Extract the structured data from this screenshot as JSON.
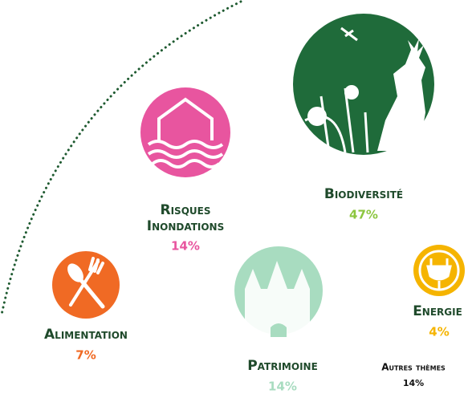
{
  "items": [
    {
      "label": "Biodiversité",
      "value": "47%"
    },
    {
      "label": "Risques Inondations",
      "lines": [
        "Risques",
        "Inondations"
      ],
      "value": "14%"
    },
    {
      "label": "Alimentation",
      "value": "7%"
    },
    {
      "label": "Patrimoine",
      "value": "14%"
    },
    {
      "label": "Energie",
      "value": "4%"
    },
    {
      "label": "Autres thèmes",
      "value": "14%"
    }
  ]
}
